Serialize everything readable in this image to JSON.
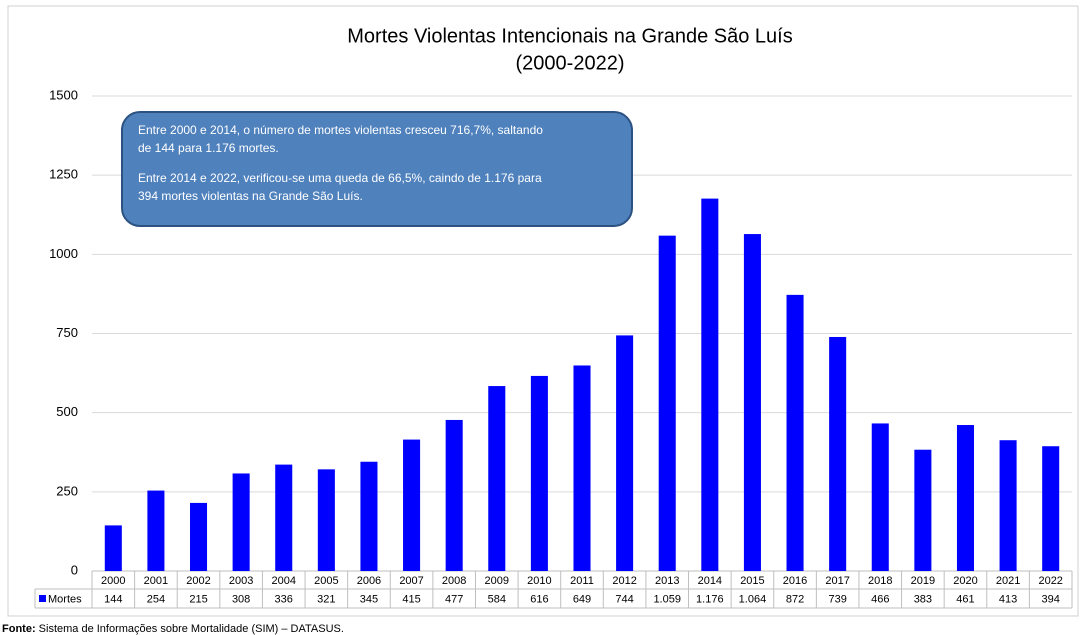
{
  "chart_data": {
    "type": "bar",
    "title": "Mortes Violentas Intencionais na Grande São Luís",
    "subtitle": "(2000-2022)",
    "annotations": [
      [
        "Entre 2000 e 2014, o número de mortes violentas cresceu 716,7%, saltando",
        "de 144 para 1.176 mortes."
      ],
      [
        "Entre 2014 e 2022, verificou-se uma queda de 66,5%, caindo de 1.176 para",
        "394 mortes violentas na Grande São Luís."
      ]
    ],
    "categories": [
      "2000",
      "2001",
      "2002",
      "2003",
      "2004",
      "2005",
      "2006",
      "2007",
      "2008",
      "2009",
      "2010",
      "2011",
      "2012",
      "2013",
      "2014",
      "2015",
      "2016",
      "2017",
      "2018",
      "2019",
      "2020",
      "2021",
      "2022"
    ],
    "series": [
      {
        "name": "Mortes",
        "color": "#0000ff",
        "values": [
          144,
          254,
          215,
          308,
          336,
          321,
          345,
          415,
          477,
          584,
          616,
          649,
          744,
          1059,
          1176,
          1064,
          872,
          739,
          466,
          383,
          461,
          413,
          394
        ],
        "value_labels": [
          "144",
          "254",
          "215",
          "308",
          "336",
          "321",
          "345",
          "415",
          "477",
          "584",
          "616",
          "649",
          "744",
          "1.059",
          "1.176",
          "1.064",
          "872",
          "739",
          "466",
          "383",
          "461",
          "413",
          "394"
        ]
      }
    ],
    "ylim": [
      0,
      1500
    ],
    "yticks": [
      0,
      250,
      500,
      750,
      1000,
      1250,
      1500
    ],
    "grid": true,
    "source_label": "Fonte:",
    "source": "Sistema de Informações sobre Mortalidade (SIM) – DATASUS."
  }
}
